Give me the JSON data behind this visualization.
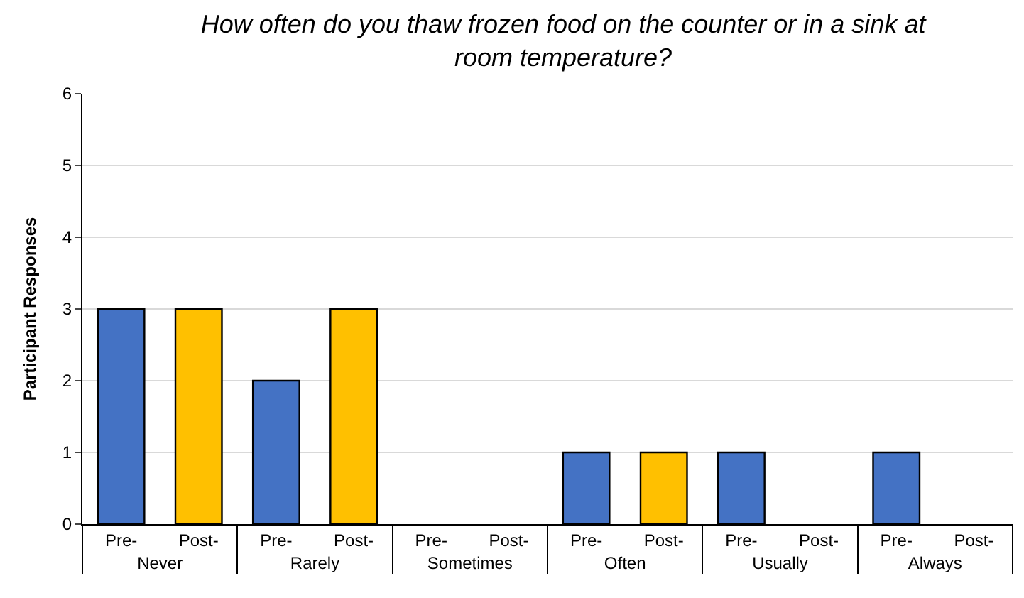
{
  "chart_data": {
    "type": "bar",
    "title": "How often do you thaw frozen food on the counter or in a sink at room temperature?",
    "ylabel": "Participant Responses",
    "categories": [
      "Never",
      "Rarely",
      "Sometimes",
      "Often",
      "Usually",
      "Always"
    ],
    "series": [
      {
        "name": "Pre-",
        "color": "#4472c4",
        "values": [
          3,
          2,
          0,
          1,
          1,
          1
        ]
      },
      {
        "name": "Post-",
        "color": "#ffc000",
        "values": [
          3,
          3,
          0,
          1,
          0,
          0
        ]
      }
    ],
    "ylim": [
      0,
      6
    ],
    "yticks": [
      0,
      1,
      2,
      3,
      4,
      5,
      6
    ],
    "grid": "y",
    "legend": false
  }
}
